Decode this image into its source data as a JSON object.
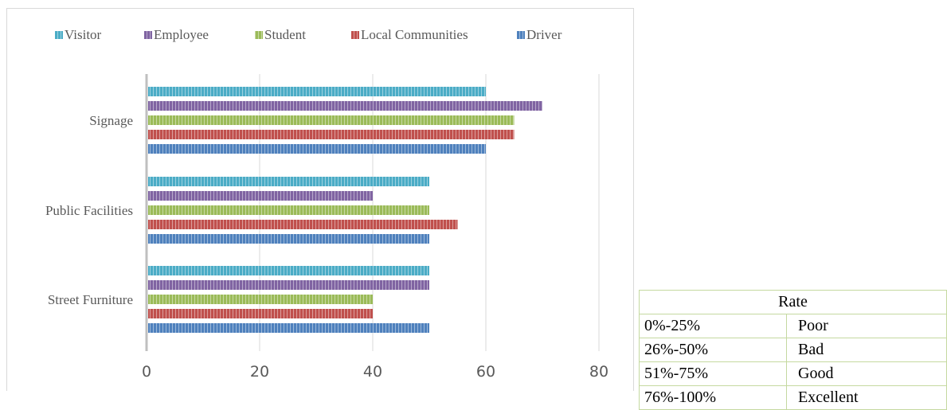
{
  "chart_data": {
    "type": "bar",
    "orientation": "horizontal",
    "categories": [
      "Signage",
      "Public Facilities",
      "Street Furniture"
    ],
    "series": [
      {
        "name": "Visitor",
        "color": "#4bacc6",
        "values": [
          60,
          50,
          50
        ]
      },
      {
        "name": "Employee",
        "color": "#8064a2",
        "values": [
          70,
          40,
          50
        ]
      },
      {
        "name": "Student",
        "color": "#9bbb59",
        "values": [
          65,
          50,
          40
        ]
      },
      {
        "name": "Local Communities",
        "color": "#c0504d",
        "values": [
          65,
          55,
          40
        ]
      },
      {
        "name": "Driver",
        "color": "#4f81bd",
        "values": [
          60,
          50,
          50
        ]
      }
    ],
    "xlim": [
      0,
      80
    ],
    "x_ticks": [
      "0",
      "20",
      "40",
      "60",
      "80"
    ],
    "grid": "vertical",
    "legend_position": "top"
  },
  "rate_table": {
    "header": "Rate",
    "rows": [
      {
        "range": "0%-25%",
        "label": "Poor"
      },
      {
        "range": "26%-50%",
        "label": "Bad"
      },
      {
        "range": "51%-75%",
        "label": "Good"
      },
      {
        "range": "76%-100%",
        "label": "Excellent"
      }
    ]
  }
}
